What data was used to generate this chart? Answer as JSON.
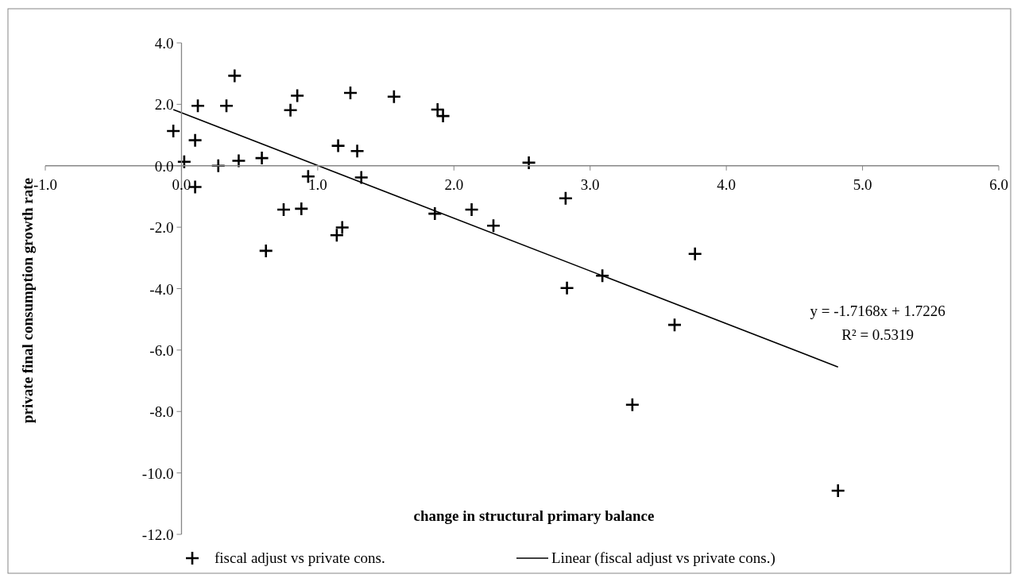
{
  "chart_data": {
    "type": "scatter",
    "xlabel": "change in structural primary balance",
    "ylabel": "private final consumption growth rate",
    "xlim": [
      -1,
      6
    ],
    "xticks": [
      {
        "value": -1,
        "label": "-1.0"
      },
      {
        "value": 0,
        "label": "0.0"
      },
      {
        "value": 1,
        "label": "1.0"
      },
      {
        "value": 2,
        "label": "2.0"
      },
      {
        "value": 3,
        "label": "3.0"
      },
      {
        "value": 4,
        "label": "4.0"
      },
      {
        "value": 5,
        "label": "5.0"
      },
      {
        "value": 6,
        "label": "6.0"
      }
    ],
    "ylim": [
      -12,
      4
    ],
    "yticks": [
      {
        "value": 4,
        "label": "4.0"
      },
      {
        "value": 2,
        "label": "2.0"
      },
      {
        "value": 0,
        "label": "0.0"
      },
      {
        "value": -2,
        "label": "-2.0"
      },
      {
        "value": -4,
        "label": "-4.0"
      },
      {
        "value": -6,
        "label": "-6.0"
      },
      {
        "value": -8,
        "label": "-8.0"
      },
      {
        "value": -10,
        "label": "-10.0"
      },
      {
        "value": -12,
        "label": "-12.0"
      }
    ],
    "legend": "bottom",
    "annotations": [
      "y = -1.7168x + 1.7226",
      "R² = 0.5319"
    ],
    "series": [
      {
        "name": "fiscal adjust vs private cons.",
        "color": "#000000",
        "marker": "cross",
        "x": [
          -0.06,
          0.1,
          0.12,
          0.02,
          0.1,
          0.27,
          0.33,
          0.39,
          0.42,
          0.59,
          0.62,
          0.75,
          0.8,
          0.85,
          0.88,
          0.93,
          1.14,
          1.18,
          1.15,
          1.24,
          1.29,
          1.32,
          1.56,
          1.88,
          1.92,
          1.86,
          2.13,
          2.29,
          2.55,
          2.82,
          3.77,
          2.83,
          3.09,
          3.62,
          3.31,
          4.82
        ],
        "values": [
          1.13,
          0.83,
          1.95,
          0.13,
          -0.69,
          0.0,
          1.95,
          2.93,
          0.16,
          0.25,
          -2.77,
          -1.43,
          1.81,
          2.28,
          -1.4,
          -0.35,
          -2.26,
          -2.01,
          0.65,
          2.37,
          0.48,
          -0.38,
          2.25,
          1.83,
          1.62,
          -1.56,
          -1.43,
          -1.95,
          0.1,
          -1.06,
          -2.87,
          -3.98,
          -3.58,
          -5.18,
          -7.78,
          -10.58
        ]
      },
      {
        "type": "line",
        "name": "Linear (fiscal adjust vs private cons.)",
        "color": "#000000",
        "marker": "none",
        "x": [
          -0.06,
          4.82
        ],
        "values": [
          1.83,
          -6.55
        ]
      }
    ]
  }
}
